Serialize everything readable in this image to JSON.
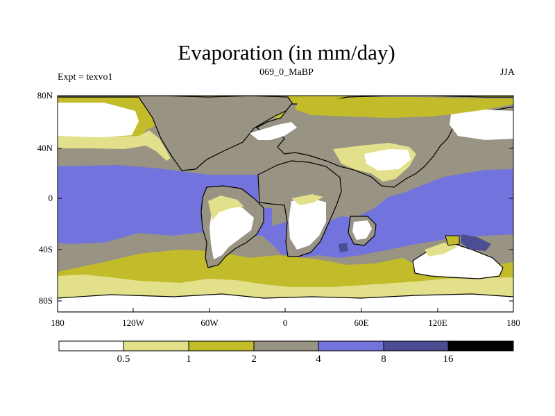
{
  "title": "Evaporation (in mm/day)",
  "subtitle_left": "Expt = texvo1",
  "subtitle_center": "069_0_MaBP",
  "subtitle_right": "JJA",
  "lat_ticks": [
    "80N",
    "40N",
    "0",
    "40S",
    "80S"
  ],
  "lon_ticks": [
    "180",
    "120W",
    "60W",
    "0",
    "60E",
    "120E",
    "180"
  ],
  "colorbar": {
    "levels": [
      "0.5",
      "1",
      "2",
      "4",
      "8",
      "16"
    ],
    "colors": [
      "#ffffff",
      "#e2e08a",
      "#c2bc2b",
      "#999383",
      "#7373dd",
      "#4d4d93",
      "#000000"
    ]
  },
  "palette": {
    "very_low": "#ffffff",
    "low": "#e2e08a",
    "mid": "#c2bc2b",
    "gray": "#999383",
    "high": "#7373dd",
    "very_high": "#4d4d93",
    "max": "#000000"
  }
}
